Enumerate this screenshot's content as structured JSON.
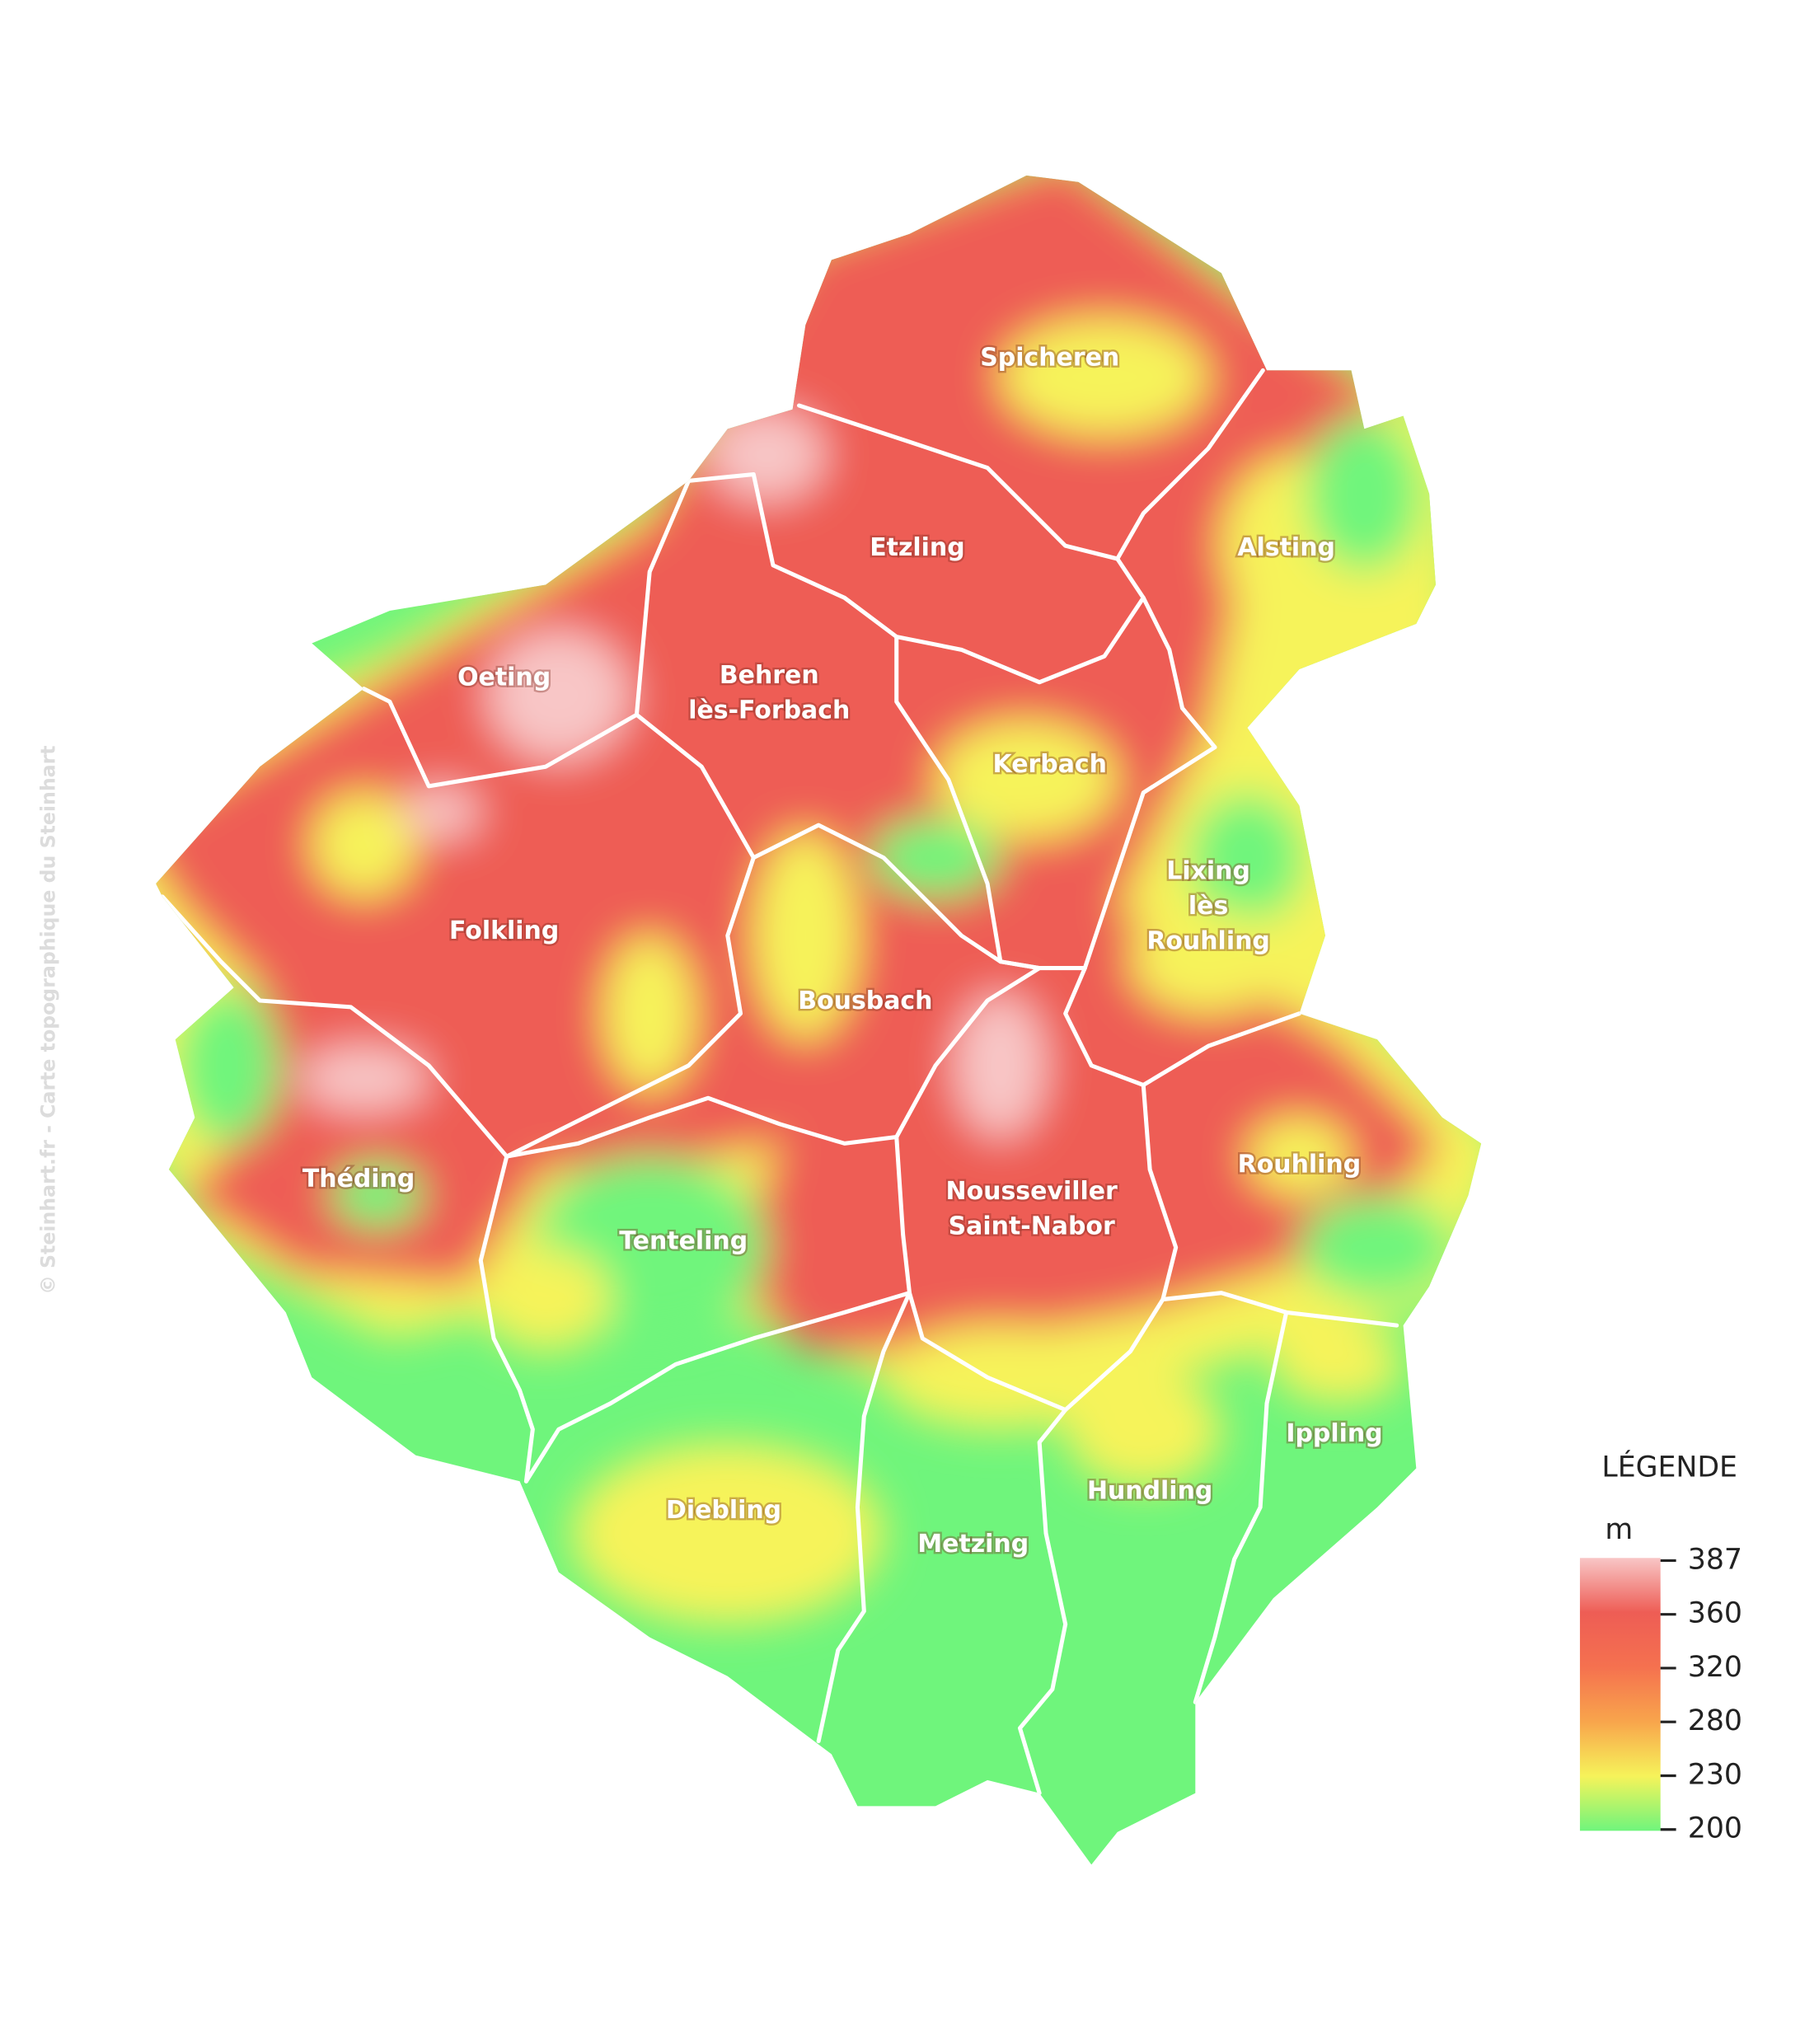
{
  "watermark": "© Steinhart.fr - Carte topographique du Steinhart",
  "regions": [
    {
      "lines": [
        "Spicheren"
      ]
    },
    {
      "lines": [
        "Etzling"
      ]
    },
    {
      "lines": [
        "Alsting"
      ]
    },
    {
      "lines": [
        "Oeting"
      ]
    },
    {
      "lines": [
        "Behren",
        "lès-Forbach"
      ]
    },
    {
      "lines": [
        "Kerbach"
      ]
    },
    {
      "lines": [
        "Lixing",
        "lès",
        "Rouhling"
      ]
    },
    {
      "lines": [
        "Folkling"
      ]
    },
    {
      "lines": [
        "Bousbach"
      ]
    },
    {
      "lines": [
        "Théding"
      ]
    },
    {
      "lines": [
        "Tenteling"
      ]
    },
    {
      "lines": [
        "Nousseviller",
        "Saint-Nabor"
      ]
    },
    {
      "lines": [
        "Rouhling"
      ]
    },
    {
      "lines": [
        "Ippling"
      ]
    },
    {
      "lines": [
        "Hundling"
      ]
    },
    {
      "lines": [
        "Diebling"
      ]
    },
    {
      "lines": [
        "Metzing"
      ]
    }
  ],
  "legend": {
    "title": "LÉGENDE",
    "unit": "m",
    "ticks": [
      387,
      360,
      320,
      280,
      230,
      200
    ],
    "colors": [
      "#f8c6c6",
      "#ee5d55",
      "#f5714f",
      "#f8a54c",
      "#f6f35a",
      "#6ff57c"
    ]
  }
}
